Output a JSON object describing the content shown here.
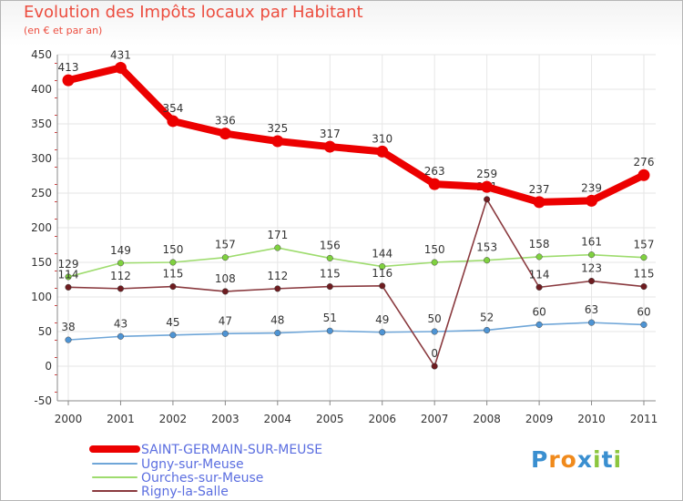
{
  "title": "Evolution des Impôts locaux par Habitant",
  "subtitle": "(en € et par an)",
  "logo": {
    "letters": [
      {
        "ch": "P",
        "color": "#3a8fd0"
      },
      {
        "ch": "r",
        "color": "#f08a1c"
      },
      {
        "ch": "o",
        "color": "#f08a1c"
      },
      {
        "ch": "x",
        "color": "#3a8fd0"
      },
      {
        "ch": "i",
        "color": "#8cc63f"
      },
      {
        "ch": "t",
        "color": "#3a8fd0"
      },
      {
        "ch": "i",
        "color": "#8cc63f"
      }
    ]
  },
  "chart_data": {
    "type": "line",
    "x": [
      "2000",
      "2001",
      "2002",
      "2003",
      "2004",
      "2005",
      "2006",
      "2007",
      "2008",
      "2009",
      "2010",
      "2011"
    ],
    "ylim": [
      -50,
      450
    ],
    "yticks": [
      -50,
      0,
      50,
      100,
      150,
      200,
      250,
      300,
      350,
      400,
      450
    ],
    "grid": true,
    "legend_position": "bottom-left",
    "series": [
      {
        "name": "SAINT-GERMAIN-SUR-MEUSE",
        "color": "#ec0000",
        "marker": "#ec0000",
        "values": [
          413,
          431,
          354,
          336,
          325,
          317,
          310,
          263,
          259,
          237,
          239,
          276
        ]
      },
      {
        "name": "Ugny-sur-Meuse",
        "color": "#6fa6d8",
        "marker": "#4e94d4",
        "values": [
          38,
          43,
          45,
          47,
          48,
          51,
          49,
          50,
          52,
          60,
          63,
          60
        ]
      },
      {
        "name": "Ourches-sur-Meuse",
        "color": "#9edc6e",
        "marker": "#7fd13f",
        "values": [
          129,
          149,
          150,
          157,
          171,
          156,
          144,
          150,
          153,
          158,
          161,
          157
        ]
      },
      {
        "name": "Rigny-la-Salle",
        "color": "#8a3a3f",
        "marker": "#6e1c20",
        "values": [
          114,
          112,
          115,
          108,
          112,
          115,
          116,
          0,
          241,
          114,
          123,
          115
        ]
      }
    ]
  }
}
